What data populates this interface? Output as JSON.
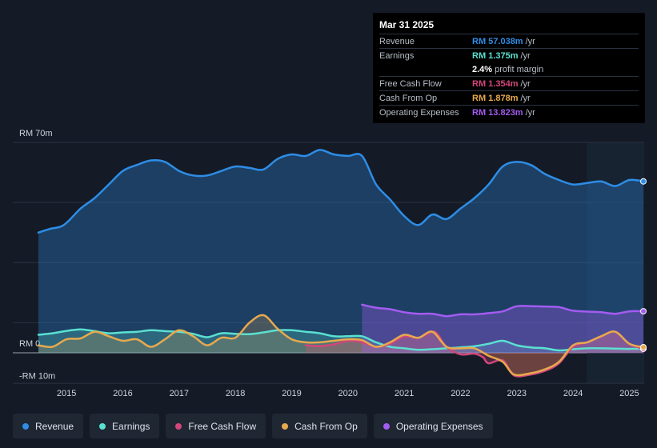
{
  "tooltip": {
    "date": "Mar 31 2025",
    "rows": [
      {
        "label": "Revenue",
        "value": "RM 57.038m",
        "unit": "/yr",
        "color": "#2e8de6"
      },
      {
        "label": "Earnings",
        "value": "RM 1.375m",
        "unit": "/yr",
        "color": "#5be0d0"
      },
      {
        "label": "",
        "value": "2.4%",
        "unit": "profit margin",
        "color": "#ffffff"
      },
      {
        "label": "Free Cash Flow",
        "value": "RM 1.354m",
        "unit": "/yr",
        "color": "#d3467b"
      },
      {
        "label": "Cash From Op",
        "value": "RM 1.878m",
        "unit": "/yr",
        "color": "#e7a94e"
      },
      {
        "label": "Operating Expenses",
        "value": "RM 13.823m",
        "unit": "/yr",
        "color": "#a35cf0"
      }
    ]
  },
  "legend": [
    {
      "label": "Revenue",
      "color": "#2e8de6"
    },
    {
      "label": "Earnings",
      "color": "#5be0d0"
    },
    {
      "label": "Free Cash Flow",
      "color": "#d3467b"
    },
    {
      "label": "Cash From Op",
      "color": "#e7a94e"
    },
    {
      "label": "Operating Expenses",
      "color": "#a35cf0"
    }
  ],
  "chart_data": {
    "type": "area",
    "title": "",
    "xlabel": "",
    "ylabel": "",
    "y_tick_labels": [
      "RM 70m",
      "RM 0",
      "-RM 10m"
    ],
    "x_tick_labels": [
      "2015",
      "2016",
      "2017",
      "2018",
      "2019",
      "2020",
      "2021",
      "2022",
      "2023",
      "2024",
      "2025"
    ],
    "xlim": [
      2014.5,
      2025.25
    ],
    "ylim": [
      -10,
      70
    ],
    "series": [
      {
        "name": "Revenue",
        "color": "#2e8de6",
        "points": [
          [
            2014.5,
            40
          ],
          [
            2014.7,
            41.2
          ],
          [
            2014.95,
            42.5
          ],
          [
            2015.25,
            48
          ],
          [
            2015.5,
            51.5
          ],
          [
            2015.75,
            56
          ],
          [
            2016.0,
            60.5
          ],
          [
            2016.25,
            62.5
          ],
          [
            2016.5,
            64
          ],
          [
            2016.75,
            63.5
          ],
          [
            2017.0,
            60.5
          ],
          [
            2017.25,
            59
          ],
          [
            2017.5,
            59
          ],
          [
            2017.75,
            60.5
          ],
          [
            2018.0,
            62
          ],
          [
            2018.25,
            61.5
          ],
          [
            2018.5,
            61
          ],
          [
            2018.75,
            64.5
          ],
          [
            2019.0,
            66
          ],
          [
            2019.25,
            65.5
          ],
          [
            2019.5,
            67.5
          ],
          [
            2019.75,
            66
          ],
          [
            2020.0,
            65.5
          ],
          [
            2020.25,
            65.5
          ],
          [
            2020.5,
            56
          ],
          [
            2020.75,
            51
          ],
          [
            2021.0,
            45.5
          ],
          [
            2021.25,
            42.5
          ],
          [
            2021.5,
            46
          ],
          [
            2021.75,
            44.5
          ],
          [
            2022.0,
            48
          ],
          [
            2022.25,
            51.5
          ],
          [
            2022.5,
            56
          ],
          [
            2022.75,
            62
          ],
          [
            2023.0,
            63.5
          ],
          [
            2023.25,
            62.5
          ],
          [
            2023.5,
            59.5
          ],
          [
            2023.75,
            57.5
          ],
          [
            2024.0,
            56
          ],
          [
            2024.25,
            56.5
          ],
          [
            2024.5,
            57
          ],
          [
            2024.75,
            55.5
          ],
          [
            2025.0,
            57.5
          ],
          [
            2025.25,
            57.038
          ]
        ]
      },
      {
        "name": "Earnings",
        "color": "#5be0d0",
        "points": [
          [
            2014.5,
            6
          ],
          [
            2014.75,
            6.5
          ],
          [
            2015.0,
            7.3
          ],
          [
            2015.25,
            7.8
          ],
          [
            2015.5,
            7.2
          ],
          [
            2015.75,
            6.5
          ],
          [
            2016.0,
            6.8
          ],
          [
            2016.25,
            7
          ],
          [
            2016.5,
            7.5
          ],
          [
            2016.75,
            7.2
          ],
          [
            2017.0,
            7
          ],
          [
            2017.25,
            6.3
          ],
          [
            2017.5,
            5.2
          ],
          [
            2017.75,
            6.5
          ],
          [
            2018.0,
            6.3
          ],
          [
            2018.25,
            6.2
          ],
          [
            2018.5,
            6.8
          ],
          [
            2018.75,
            7.5
          ],
          [
            2019.0,
            7.5
          ],
          [
            2019.25,
            7
          ],
          [
            2019.5,
            6.5
          ],
          [
            2019.75,
            5.5
          ],
          [
            2020.0,
            5.5
          ],
          [
            2020.25,
            5.5
          ],
          [
            2020.5,
            3.5
          ],
          [
            2020.75,
            2
          ],
          [
            2021.0,
            1.5
          ],
          [
            2021.25,
            1
          ],
          [
            2021.5,
            1.2
          ],
          [
            2021.75,
            1.5
          ],
          [
            2022.0,
            1.8
          ],
          [
            2022.25,
            2.2
          ],
          [
            2022.5,
            3
          ],
          [
            2022.75,
            4
          ],
          [
            2023.0,
            2.5
          ],
          [
            2023.25,
            1.8
          ],
          [
            2023.5,
            1.5
          ],
          [
            2023.75,
            0.8
          ],
          [
            2024.0,
            1.2
          ],
          [
            2024.25,
            1.5
          ],
          [
            2024.5,
            1.5
          ],
          [
            2024.75,
            1.4
          ],
          [
            2025.0,
            1.3
          ],
          [
            2025.25,
            1.375
          ]
        ]
      },
      {
        "name": "Free Cash Flow",
        "color": "#d3467b",
        "points": [
          [
            2019.25,
            2.5
          ],
          [
            2019.5,
            2.2
          ],
          [
            2019.75,
            2.8
          ],
          [
            2020.0,
            4
          ],
          [
            2020.25,
            3.5
          ],
          [
            2020.5,
            2
          ],
          [
            2020.75,
            3
          ],
          [
            2021.0,
            5.5
          ],
          [
            2021.25,
            5
          ],
          [
            2021.5,
            7
          ],
          [
            2021.6,
            6
          ],
          [
            2021.75,
            2
          ],
          [
            2022.0,
            -0.5
          ],
          [
            2022.25,
            -0.3
          ],
          [
            2022.4,
            -1.5
          ],
          [
            2022.5,
            -3.5
          ],
          [
            2022.75,
            -2.5
          ],
          [
            2022.95,
            -7.5
          ],
          [
            2023.25,
            -7.2
          ],
          [
            2023.5,
            -6
          ],
          [
            2023.75,
            -3.5
          ],
          [
            2024.0,
            2
          ],
          [
            2024.25,
            3.5
          ],
          [
            2024.5,
            5.5
          ],
          [
            2024.75,
            7
          ],
          [
            2025.0,
            3
          ],
          [
            2025.25,
            1.354
          ]
        ]
      },
      {
        "name": "Cash From Op",
        "color": "#e7a94e",
        "points": [
          [
            2014.5,
            2.5
          ],
          [
            2014.75,
            2
          ],
          [
            2015.0,
            4.5
          ],
          [
            2015.25,
            4.8
          ],
          [
            2015.5,
            7
          ],
          [
            2015.75,
            5.5
          ],
          [
            2016.0,
            4
          ],
          [
            2016.25,
            4.5
          ],
          [
            2016.5,
            2
          ],
          [
            2016.75,
            4.5
          ],
          [
            2017.0,
            7.5
          ],
          [
            2017.25,
            5.5
          ],
          [
            2017.5,
            2.5
          ],
          [
            2017.75,
            5
          ],
          [
            2018.0,
            5
          ],
          [
            2018.25,
            10
          ],
          [
            2018.5,
            12.5
          ],
          [
            2018.75,
            8
          ],
          [
            2019.0,
            4.5
          ],
          [
            2019.25,
            3.5
          ],
          [
            2019.5,
            3.5
          ],
          [
            2019.75,
            4
          ],
          [
            2020.0,
            4.5
          ],
          [
            2020.25,
            4.2
          ],
          [
            2020.5,
            2
          ],
          [
            2020.75,
            3.5
          ],
          [
            2021.0,
            6
          ],
          [
            2021.25,
            5
          ],
          [
            2021.5,
            7
          ],
          [
            2021.75,
            2
          ],
          [
            2022.0,
            1.5
          ],
          [
            2022.25,
            1.5
          ],
          [
            2022.5,
            -1
          ],
          [
            2022.75,
            -3
          ],
          [
            2022.95,
            -7.2
          ],
          [
            2023.25,
            -6.8
          ],
          [
            2023.5,
            -5.5
          ],
          [
            2023.75,
            -3
          ],
          [
            2024.0,
            2.5
          ],
          [
            2024.25,
            3.5
          ],
          [
            2024.5,
            5.5
          ],
          [
            2024.75,
            7
          ],
          [
            2025.0,
            3
          ],
          [
            2025.25,
            1.878
          ]
        ]
      },
      {
        "name": "Operating Expenses",
        "color": "#a35cf0",
        "points": [
          [
            2020.25,
            16
          ],
          [
            2020.5,
            15
          ],
          [
            2020.75,
            14.5
          ],
          [
            2021.0,
            13.5
          ],
          [
            2021.25,
            13
          ],
          [
            2021.5,
            13
          ],
          [
            2021.75,
            12.2
          ],
          [
            2022.0,
            12.8
          ],
          [
            2022.25,
            12.8
          ],
          [
            2022.5,
            13.2
          ],
          [
            2022.75,
            13.8
          ],
          [
            2023.0,
            15.5
          ],
          [
            2023.25,
            15.5
          ],
          [
            2023.5,
            15.4
          ],
          [
            2023.75,
            15.2
          ],
          [
            2024.0,
            14
          ],
          [
            2024.25,
            13.7
          ],
          [
            2024.5,
            13.5
          ],
          [
            2024.75,
            13
          ],
          [
            2025.0,
            13.8
          ],
          [
            2025.25,
            13.823
          ]
        ]
      }
    ]
  }
}
